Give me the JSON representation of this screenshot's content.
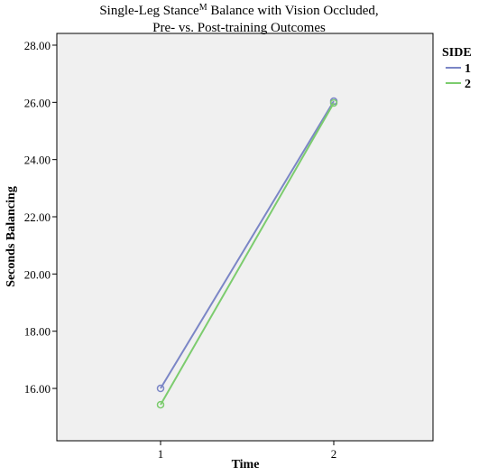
{
  "chart_data": {
    "type": "line",
    "title": [
      "Single-Leg Stance",
      "M",
      " Balance with Vision Occluded,",
      "Pre- vs. Post-training Outcomes"
    ],
    "x_label": "Time",
    "y_label": "Seconds Balancing",
    "categories": [
      "1",
      "2"
    ],
    "legend_title": "SIDE",
    "legend_position": "right",
    "series": [
      {
        "name": "1",
        "color": "#7b86c6",
        "values": [
          16.0,
          26.04
        ]
      },
      {
        "name": "2",
        "color": "#7ccc6e",
        "values": [
          15.43,
          25.98
        ]
      }
    ],
    "ylim": [
      14.17,
      28.41
    ],
    "yticks": [
      {
        "value": 16,
        "label": "16.00"
      },
      {
        "value": 18,
        "label": "18.00"
      },
      {
        "value": 20,
        "label": "20.00"
      },
      {
        "value": 22,
        "label": "22.00"
      },
      {
        "value": 24,
        "label": "24.00"
      },
      {
        "value": 26,
        "label": "26.00"
      },
      {
        "value": 28,
        "label": "28.00"
      }
    ],
    "grid": false
  }
}
